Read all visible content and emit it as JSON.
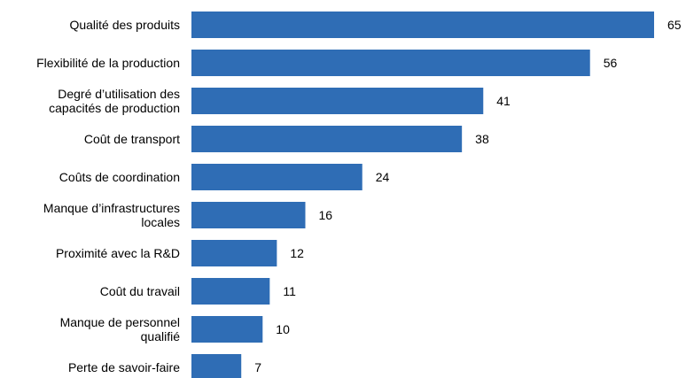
{
  "chart_data": {
    "type": "bar",
    "orientation": "horizontal",
    "title": "",
    "xlabel": "",
    "ylabel": "",
    "categories": [
      [
        "Qualité des produits"
      ],
      [
        "Flexibilité de la production"
      ],
      [
        "Degré d’utilisation des",
        "capacités de production"
      ],
      [
        "Coût de transport"
      ],
      [
        "Coûts de coordination"
      ],
      [
        "Manque d’infrastructures",
        "locales"
      ],
      [
        "Proximité avec la R&D"
      ],
      [
        "Coût du travail"
      ],
      [
        "Manque de personnel",
        "qualifié"
      ],
      [
        "Perte de savoir-faire"
      ]
    ],
    "values": [
      65,
      56,
      41,
      38,
      24,
      16,
      12,
      11,
      10,
      7
    ],
    "xlim": [
      0,
      65
    ],
    "grid": false,
    "legend": "none",
    "bar_color": "#2f6db5"
  }
}
